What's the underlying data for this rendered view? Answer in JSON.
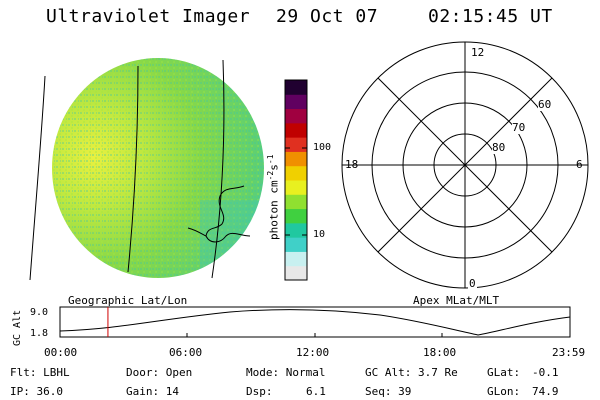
{
  "header": {
    "instrument": "Ultraviolet Imager",
    "date": "29 Oct 07",
    "time": "02:15:45 UT"
  },
  "colorbar": {
    "label_main": "photon cm",
    "label_sup1": "-2",
    "label_mid": "s",
    "label_sup2": "-1",
    "tick_100": "100",
    "tick_10": "10",
    "colors": [
      "#e8e8e8",
      "#c8f0f0",
      "#40d0c8",
      "#20c8a0",
      "#40d040",
      "#90e030",
      "#e8f020",
      "#f0d000",
      "#f09000",
      "#e03020",
      "#c00000",
      "#a00040",
      "#600060",
      "#200030"
    ]
  },
  "polar": {
    "labels": {
      "top": "12",
      "left": "18",
      "right": "6",
      "bottom": "0",
      "lat60": "60",
      "lat70": "70",
      "lat80": "80"
    },
    "caption": "Apex MLat/MLT"
  },
  "image": {
    "caption": "Geographic Lat/Lon"
  },
  "timeline": {
    "ylabel": "GC Alt",
    "y_top": "9.0",
    "y_bottom": "1.8",
    "x_ticks": [
      "00:00",
      "06:00",
      "12:00",
      "18:00",
      "23:59"
    ],
    "current_fraction": 0.094
  },
  "info": {
    "row1": [
      {
        "k": "Flt: LBHL"
      },
      {
        "k": "Door: Open"
      },
      {
        "k": "Mode: Normal"
      },
      {
        "k": "GC Alt: 3.7 Re"
      },
      {
        "k": "GLat:",
        "v": "-0.1"
      }
    ],
    "row2": [
      {
        "k": "IP: 36.0"
      },
      {
        "k": "Gain: 14"
      },
      {
        "k": "Dsp:",
        "v": "6.1"
      },
      {
        "k": "Seq: 39"
      },
      {
        "k": "GLon:",
        "v": "74.9"
      }
    ]
  }
}
